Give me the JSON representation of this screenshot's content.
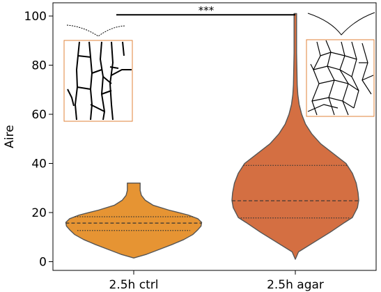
{
  "chart_data": {
    "type": "violin",
    "ylabel": "Aire",
    "xlabel": "",
    "ylim": [
      -3,
      106
    ],
    "yticks": [
      0,
      20,
      40,
      60,
      80,
      100
    ],
    "grid": false,
    "categories": [
      "2.5h ctrl",
      "2.5h agar"
    ],
    "violins": [
      {
        "category": "2.5h ctrl",
        "color": "#e69433",
        "profile": [
          [
            1.5,
            0.0
          ],
          [
            3,
            0.2
          ],
          [
            5,
            0.4
          ],
          [
            7,
            0.6
          ],
          [
            9,
            0.78
          ],
          [
            11,
            0.92
          ],
          [
            13,
            1.0
          ],
          [
            14.5,
            1.05
          ],
          [
            16,
            1.06
          ],
          [
            17.5,
            1.0
          ],
          [
            19,
            0.85
          ],
          [
            21,
            0.55
          ],
          [
            23,
            0.3
          ],
          [
            25,
            0.18
          ],
          [
            27,
            0.12
          ],
          [
            29,
            0.1
          ],
          [
            31,
            0.1
          ],
          [
            32,
            0.1
          ]
        ],
        "quartiles": [
          12.7,
          15.7,
          18.3
        ],
        "quartile_halfwidth": [
          0.88,
          1.06,
          0.92
        ]
      },
      {
        "category": "2.5h agar",
        "color": "#d46f42",
        "profile": [
          [
            1,
            0.0
          ],
          [
            4,
            0.05
          ],
          [
            8,
            0.3
          ],
          [
            12,
            0.55
          ],
          [
            16,
            0.78
          ],
          [
            18,
            0.9
          ],
          [
            22,
            0.98
          ],
          [
            25,
            1.0
          ],
          [
            28,
            0.99
          ],
          [
            32,
            0.96
          ],
          [
            36,
            0.9
          ],
          [
            40,
            0.8
          ],
          [
            44,
            0.6
          ],
          [
            48,
            0.4
          ],
          [
            52,
            0.26
          ],
          [
            56,
            0.16
          ],
          [
            60,
            0.1
          ],
          [
            64,
            0.06
          ],
          [
            68,
            0.04
          ],
          [
            72,
            0.03
          ],
          [
            78,
            0.025
          ],
          [
            85,
            0.02
          ],
          [
            92,
            0.02
          ],
          [
            96,
            0.02
          ],
          [
            101,
            0.02
          ]
        ],
        "quartiles": [
          17.8,
          24.8,
          39.2
        ],
        "quartile_halfwidth": [
          0.86,
          1.0,
          0.82
        ]
      }
    ],
    "significance": {
      "label": "***",
      "y": 100.5,
      "from": "2.5h ctrl",
      "to": "2.5h agar"
    }
  },
  "insets": [
    {
      "name": "ctrl-cell-outline-inset",
      "description_color": "#e0833a"
    },
    {
      "name": "agar-cell-outline-inset",
      "description_color": "#e0833a"
    }
  ]
}
